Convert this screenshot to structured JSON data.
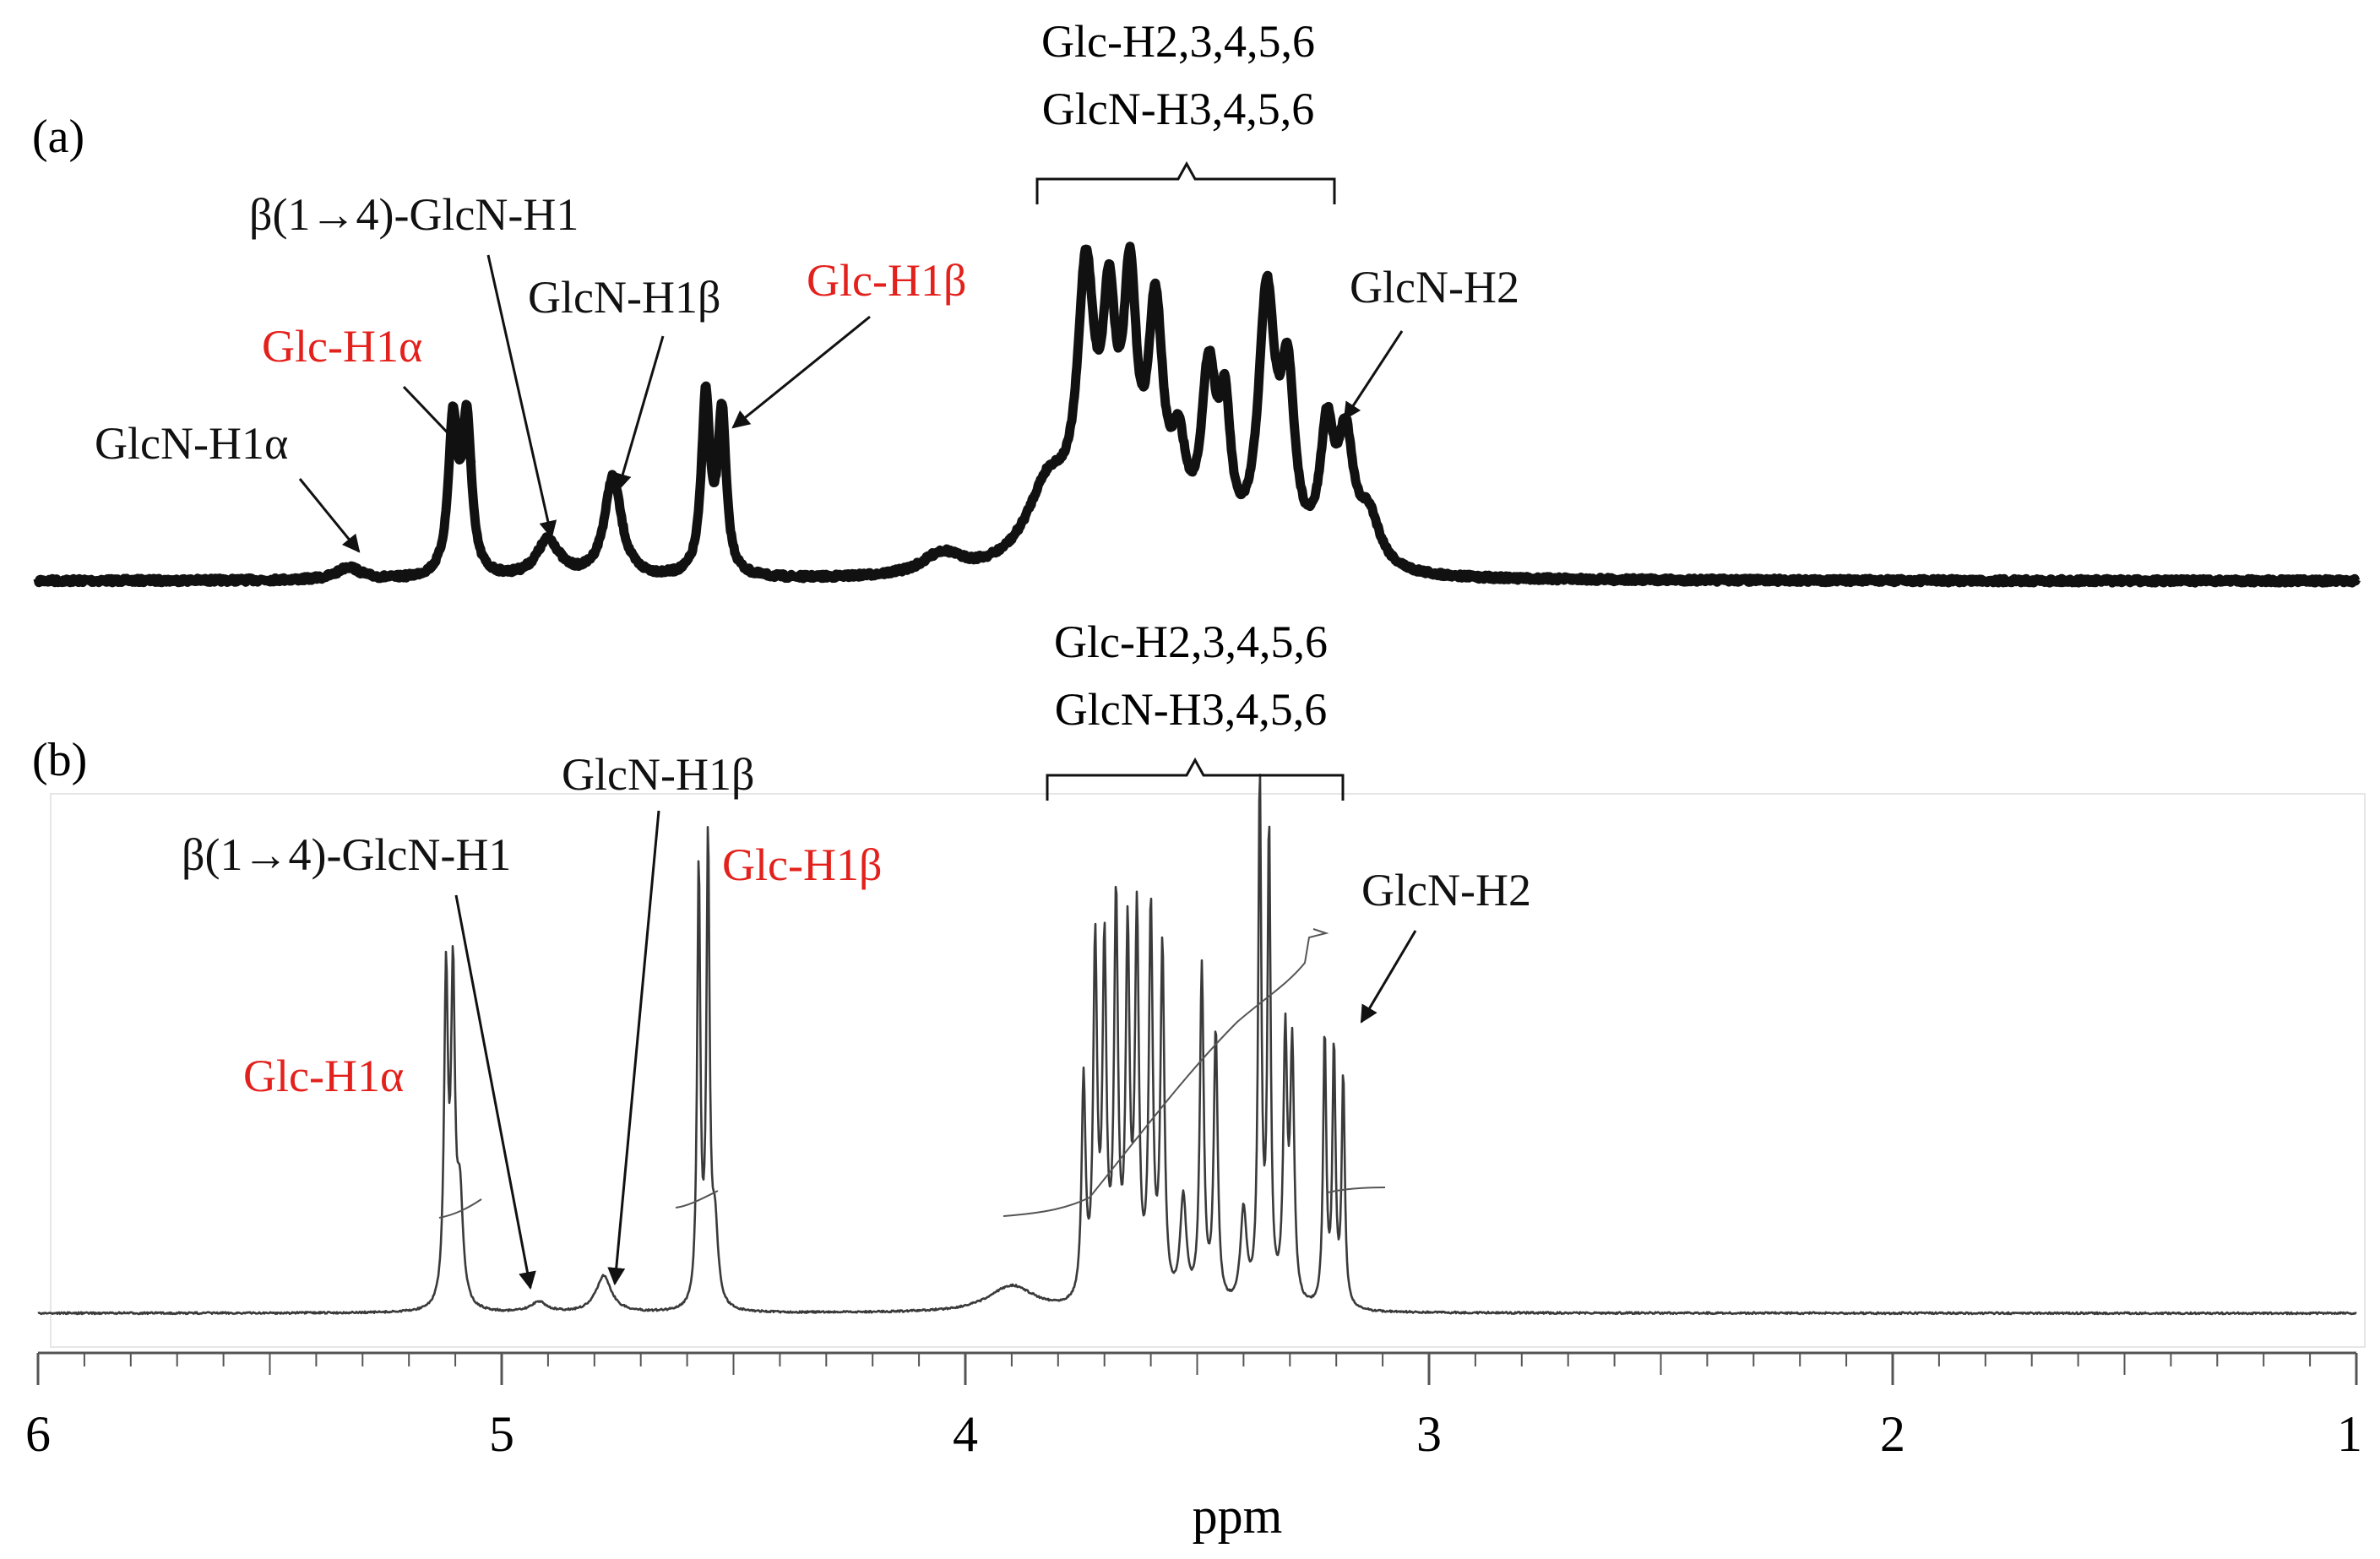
{
  "chart_data": {
    "type": "line",
    "xlabel": "ppm",
    "xlim": [
      6,
      1
    ],
    "x_reversed": true,
    "x_ticks": [
      "6",
      "5",
      "4",
      "3",
      "2",
      "1"
    ],
    "colors": {
      "highlight": "#e3211c",
      "spectrum": "#111111",
      "spectrum_b": "#3a3a3a"
    },
    "panels": [
      {
        "id": "a",
        "label": "(a)",
        "style": "broad",
        "peaks": [
          {
            "ppm": 5.33,
            "h": 0.03,
            "w": 0.03
          },
          {
            "ppm": 5.105,
            "h": 0.36,
            "w": 0.012
          },
          {
            "ppm": 5.075,
            "h": 0.36,
            "w": 0.012
          },
          {
            "ppm": 4.9,
            "h": 0.09,
            "w": 0.03
          },
          {
            "ppm": 4.76,
            "h": 0.24,
            "w": 0.022
          },
          {
            "ppm": 4.56,
            "h": 0.42,
            "w": 0.011
          },
          {
            "ppm": 4.525,
            "h": 0.38,
            "w": 0.011
          },
          {
            "ppm": 4.05,
            "h": 0.05,
            "w": 0.05
          },
          {
            "ppm": 3.82,
            "h": 0.2,
            "w": 0.06
          },
          {
            "ppm": 3.74,
            "h": 0.62,
            "w": 0.022
          },
          {
            "ppm": 3.69,
            "h": 0.5,
            "w": 0.018
          },
          {
            "ppm": 3.645,
            "h": 0.58,
            "w": 0.018
          },
          {
            "ppm": 3.59,
            "h": 0.55,
            "w": 0.02
          },
          {
            "ppm": 3.54,
            "h": 0.22,
            "w": 0.02
          },
          {
            "ppm": 3.475,
            "h": 0.42,
            "w": 0.02
          },
          {
            "ppm": 3.44,
            "h": 0.3,
            "w": 0.015
          },
          {
            "ppm": 3.35,
            "h": 0.62,
            "w": 0.022
          },
          {
            "ppm": 3.305,
            "h": 0.4,
            "w": 0.018
          },
          {
            "ppm": 3.22,
            "h": 0.3,
            "w": 0.018
          },
          {
            "ppm": 3.18,
            "h": 0.28,
            "w": 0.02
          },
          {
            "ppm": 3.13,
            "h": 0.12,
            "w": 0.03
          }
        ],
        "annotations": [
          {
            "text": "GlcN-H1α",
            "color": "#111111"
          },
          {
            "text": "Glc-H1α",
            "color": "#e3211c"
          },
          {
            "text": "β(1→4)-GlcN-H1",
            "color": "#111111"
          },
          {
            "text": "GlcN-H1β",
            "color": "#111111"
          },
          {
            "text": "Glc-H1β",
            "color": "#e3211c"
          },
          {
            "text": "GlcN-H2",
            "color": "#111111"
          }
        ],
        "bracket": {
          "lines": [
            "Glc-H2,3,4,5,6",
            "GlcN-H3,4,5,6"
          ]
        }
      },
      {
        "id": "b",
        "label": "(b)",
        "style": "sharp",
        "peaks": [
          {
            "ppm": 5.12,
            "h": 0.62,
            "w": 0.005
          },
          {
            "ppm": 5.105,
            "h": 0.6,
            "w": 0.005
          },
          {
            "ppm": 5.09,
            "h": 0.2,
            "w": 0.008
          },
          {
            "ppm": 4.92,
            "h": 0.02,
            "w": 0.02
          },
          {
            "ppm": 4.78,
            "h": 0.07,
            "w": 0.02
          },
          {
            "ppm": 4.575,
            "h": 0.84,
            "w": 0.004
          },
          {
            "ppm": 4.555,
            "h": 0.88,
            "w": 0.004
          },
          {
            "ppm": 4.54,
            "h": 0.15,
            "w": 0.008
          },
          {
            "ppm": 3.9,
            "h": 0.05,
            "w": 0.06
          },
          {
            "ppm": 3.745,
            "h": 0.42,
            "w": 0.005
          },
          {
            "ppm": 3.72,
            "h": 0.67,
            "w": 0.005
          },
          {
            "ppm": 3.7,
            "h": 0.66,
            "w": 0.005
          },
          {
            "ppm": 3.675,
            "h": 0.75,
            "w": 0.005
          },
          {
            "ppm": 3.65,
            "h": 0.68,
            "w": 0.005
          },
          {
            "ppm": 3.63,
            "h": 0.72,
            "w": 0.005
          },
          {
            "ppm": 3.6,
            "h": 0.74,
            "w": 0.005
          },
          {
            "ppm": 3.575,
            "h": 0.67,
            "w": 0.005
          },
          {
            "ppm": 3.53,
            "h": 0.2,
            "w": 0.008
          },
          {
            "ppm": 3.49,
            "h": 0.64,
            "w": 0.005
          },
          {
            "ppm": 3.46,
            "h": 0.52,
            "w": 0.005
          },
          {
            "ppm": 3.4,
            "h": 0.18,
            "w": 0.008
          },
          {
            "ppm": 3.365,
            "h": 1.0,
            "w": 0.004
          },
          {
            "ppm": 3.345,
            "h": 0.9,
            "w": 0.004
          },
          {
            "ppm": 3.31,
            "h": 0.5,
            "w": 0.005
          },
          {
            "ppm": 3.295,
            "h": 0.48,
            "w": 0.005
          },
          {
            "ppm": 3.225,
            "h": 0.52,
            "w": 0.004
          },
          {
            "ppm": 3.205,
            "h": 0.49,
            "w": 0.004
          },
          {
            "ppm": 3.185,
            "h": 0.44,
            "w": 0.004
          }
        ],
        "annotations": [
          {
            "text": "Glc-H1α",
            "color": "#e3211c"
          },
          {
            "text": "β(1→4)-GlcN-H1",
            "color": "#111111"
          },
          {
            "text": "GlcN-H1β",
            "color": "#111111"
          },
          {
            "text": "Glc-H1β",
            "color": "#e3211c"
          },
          {
            "text": "GlcN-H2",
            "color": "#111111"
          }
        ],
        "bracket": {
          "lines": [
            "Glc-H2,3,4,5,6",
            "GlcN-H3,4,5,6"
          ]
        }
      }
    ]
  }
}
